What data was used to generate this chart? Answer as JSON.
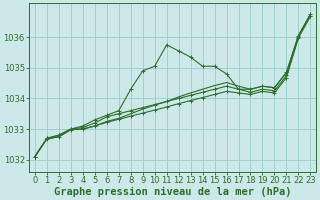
{
  "background_color": "#cce8e8",
  "grid_color": "#99cccc",
  "line_color": "#2d6e2d",
  "xlabel": "Graphe pression niveau de la mer (hPa)",
  "xlim": [
    -0.5,
    23.5
  ],
  "ylim": [
    1031.6,
    1037.1
  ],
  "yticks": [
    1032,
    1033,
    1034,
    1035,
    1036
  ],
  "xticks": [
    0,
    1,
    2,
    3,
    4,
    5,
    6,
    7,
    8,
    9,
    10,
    11,
    12,
    13,
    14,
    15,
    16,
    17,
    18,
    19,
    20,
    21,
    22,
    23
  ],
  "s1": [
    1032.1,
    1032.7,
    1032.8,
    1033.0,
    1033.1,
    1033.3,
    1033.45,
    1033.6,
    1034.3,
    1034.9,
    1035.05,
    1035.75,
    1035.55,
    1035.35,
    1035.05,
    1035.05,
    1034.8,
    1034.3,
    1034.3,
    1034.4,
    1034.35,
    1034.85,
    1036.05,
    1036.75
  ],
  "s2": [
    1032.1,
    1032.68,
    1032.75,
    1032.98,
    1033.0,
    1033.1,
    1033.25,
    1033.35,
    1033.5,
    1033.65,
    1033.78,
    1033.9,
    1034.05,
    1034.18,
    1034.3,
    1034.42,
    1034.52,
    1034.4,
    1034.3,
    1034.4,
    1034.35,
    1034.85,
    1036.05,
    1036.75
  ],
  "s3": [
    1032.1,
    1032.68,
    1032.75,
    1032.98,
    1033.0,
    1033.1,
    1033.22,
    1033.32,
    1033.42,
    1033.52,
    1033.62,
    1033.72,
    1033.83,
    1033.93,
    1034.03,
    1034.13,
    1034.23,
    1034.18,
    1034.13,
    1034.23,
    1034.18,
    1034.68,
    1035.98,
    1036.68
  ],
  "s4": [
    1032.1,
    1032.7,
    1032.8,
    1033.0,
    1033.05,
    1033.2,
    1033.4,
    1033.5,
    1033.6,
    1033.7,
    1033.8,
    1033.9,
    1034.0,
    1034.1,
    1034.2,
    1034.3,
    1034.4,
    1034.3,
    1034.2,
    1034.3,
    1034.25,
    1034.75,
    1036.0,
    1036.7
  ],
  "marker": "+",
  "markersize": 3,
  "linewidth": 0.8,
  "xlabel_fontsize": 7.5,
  "tick_fontsize": 6
}
